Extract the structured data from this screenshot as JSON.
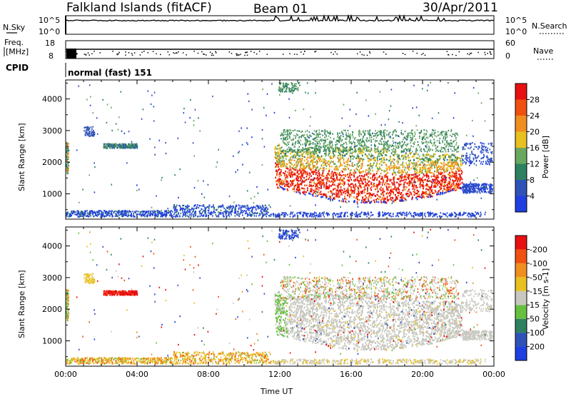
{
  "header": {
    "station": "Falkland Islands (fitACF)",
    "beam": "Beam 01",
    "date": "30/Apr/2011"
  },
  "top_panels": {
    "nsky": {
      "label": "N.Sky",
      "right_label": "N.Search",
      "left_ticks": [
        "10^5",
        "10^0"
      ],
      "right_ticks": [
        "10^5",
        "10^0"
      ]
    },
    "freq": {
      "label_lines": [
        "Freq.",
        "[MHz]"
      ],
      "right_label": "Nave",
      "left_ticks": [
        "18",
        "8"
      ],
      "right_ticks": [
        "60",
        "0"
      ]
    },
    "cpid": {
      "label": "CPID",
      "value": "normal (fast) 151"
    }
  },
  "chart_data": [
    {
      "type": "heatmap",
      "name": "power",
      "ylabel": "Slant Range [km]",
      "ylim": [
        200,
        4600
      ],
      "yticks": [
        1000,
        2000,
        3000,
        4000
      ],
      "xlim": [
        0,
        24
      ],
      "colorbar": {
        "label": "Power [dB]",
        "ticks": [
          "4",
          "8",
          "12",
          "16",
          "20",
          "24",
          "28"
        ],
        "colors": [
          "#1f3fe0",
          "#2f52b8",
          "#2e8060",
          "#6aa860",
          "#e8c020",
          "#f08e20",
          "#f05010",
          "#e81010"
        ]
      }
    },
    {
      "type": "heatmap",
      "name": "velocity",
      "ylabel": "Slant Range [km]",
      "ylim": [
        200,
        4600
      ],
      "yticks": [
        1000,
        2000,
        3000,
        4000
      ],
      "xlim": [
        0,
        24
      ],
      "xticks": [
        "00:00",
        "04:00",
        "08:00",
        "12:00",
        "16:00",
        "20:00",
        "00:00"
      ],
      "xlabel": "Time UT",
      "colorbar": {
        "label": "Velocity [m s-1]",
        "ticks": [
          "200",
          "100",
          "50",
          "15",
          "-15",
          "-50",
          "-100",
          "-200"
        ],
        "colors": [
          "#1f3fe0",
          "#2f52b8",
          "#2e8060",
          "#66c040",
          "#c8c8c0",
          "#e8c020",
          "#f08e20",
          "#f05010",
          "#e81010"
        ]
      }
    }
  ]
}
